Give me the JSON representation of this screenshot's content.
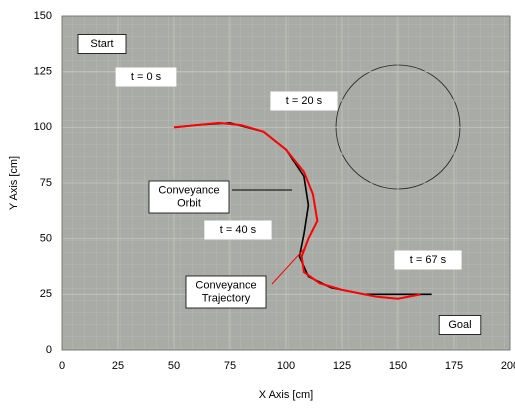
{
  "chart_data": {
    "type": "line",
    "xlabel": "X Axis [cm]",
    "ylabel": "Y Axis [cm]",
    "xlim": [
      0,
      200
    ],
    "ylim": [
      0,
      150
    ],
    "xticks": [
      0,
      25,
      50,
      75,
      100,
      125,
      150,
      175,
      200
    ],
    "yticks": [
      0,
      25,
      50,
      75,
      100,
      125,
      150
    ],
    "grid": true,
    "series": [
      {
        "name": "Conveyance Orbit",
        "color": "#000000",
        "x": [
          50,
          60,
          75,
          90,
          100,
          108,
          110,
          108,
          106,
          110,
          120,
          135,
          150,
          165
        ],
        "values": [
          100,
          101,
          102,
          98,
          90,
          78,
          65,
          52,
          42,
          33,
          28,
          25,
          25,
          25
        ]
      },
      {
        "name": "Conveyance Trajectory",
        "color": "#ff0000",
        "x": [
          50,
          60,
          70,
          80,
          90,
          100,
          108,
          112,
          114,
          110,
          107,
          108,
          115,
          125,
          140,
          150,
          160
        ],
        "values": [
          100,
          101,
          102,
          101,
          98,
          90,
          80,
          70,
          58,
          50,
          42,
          35,
          30,
          27,
          24,
          23,
          25
        ]
      }
    ],
    "annotations": [
      [
        "Start"
      ],
      [
        "t = 0 s"
      ],
      [
        "t = 20 s"
      ],
      [
        "Conveyance",
        "Orbit"
      ],
      [
        "t = 40 s"
      ],
      [
        "Conveyance",
        "Trajectory"
      ],
      [
        "t = 67 s"
      ],
      [
        "Goal"
      ]
    ]
  }
}
